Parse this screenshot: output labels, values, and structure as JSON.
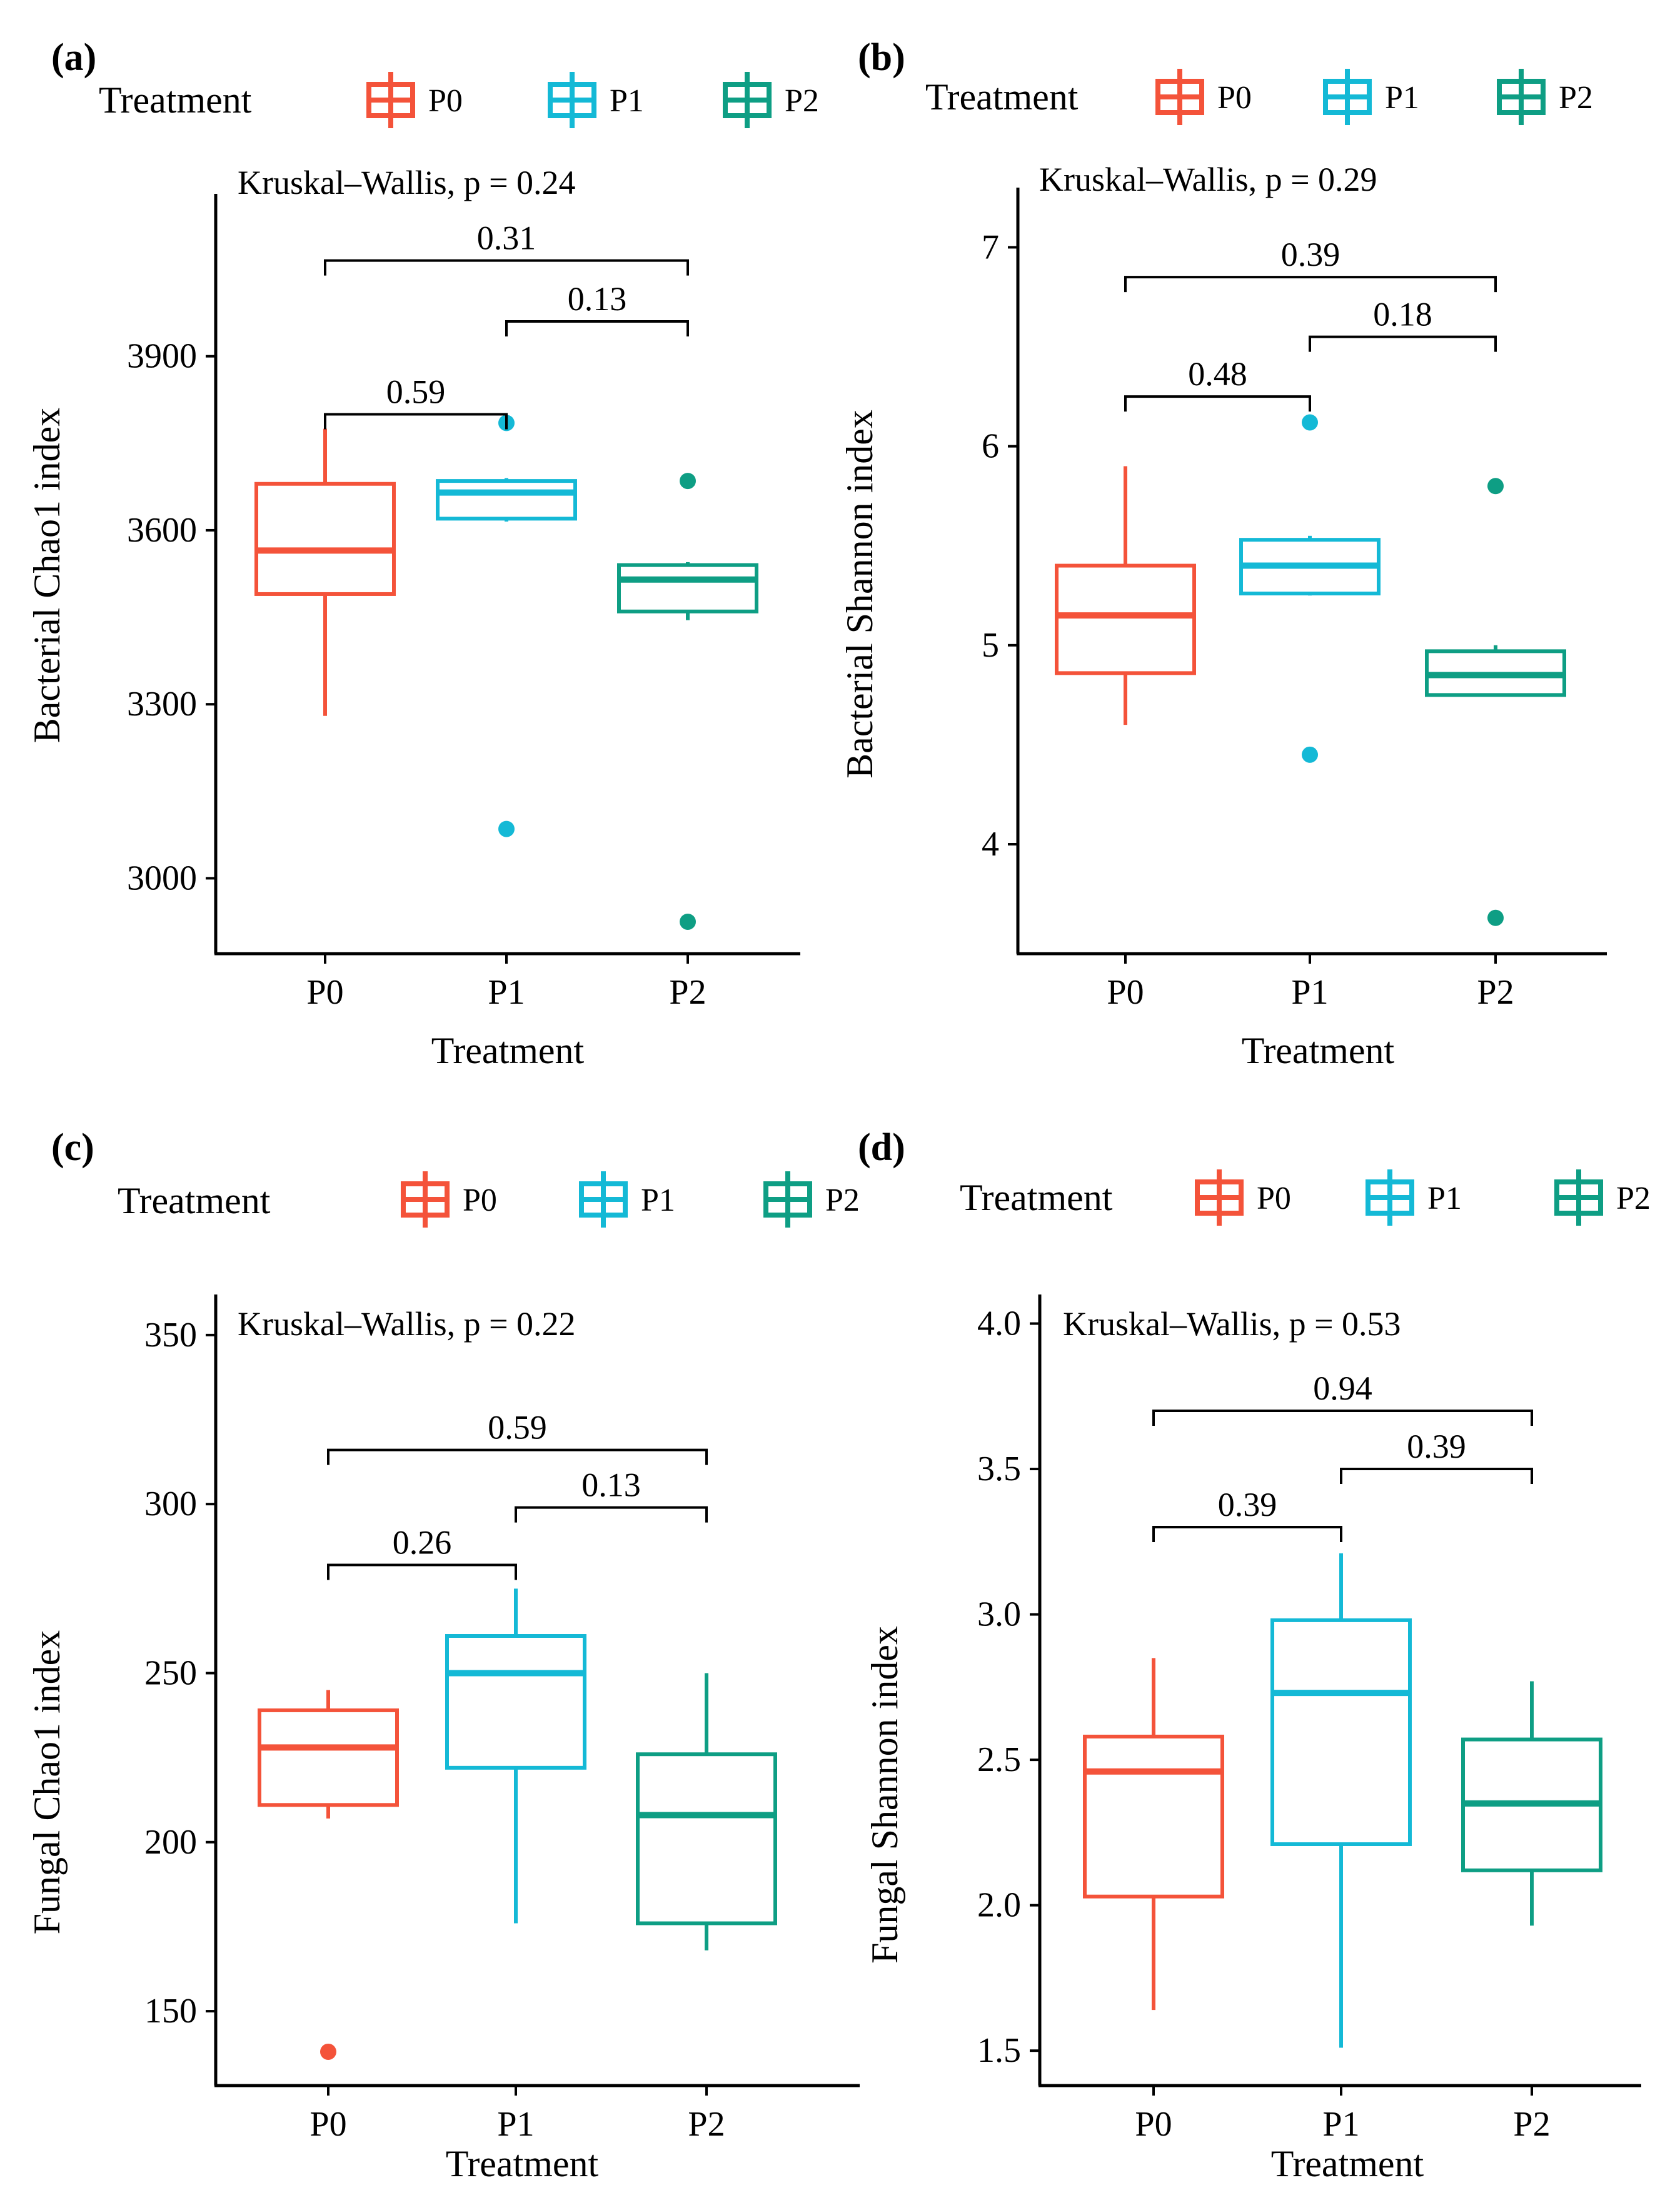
{
  "colors": {
    "P0": "#F4533A",
    "P1": "#14B9D6",
    "P2": "#0E9E84"
  },
  "chart_data": [
    {
      "type": "box",
      "panel": "(a)",
      "legend": {
        "title": "Treatment",
        "entries": [
          "P0",
          "P1",
          "P2"
        ]
      },
      "title": "Kruskal–Wallis, p = 0.24",
      "xlabel": "Treatment",
      "ylabel": "Bacterial Chao1 index",
      "categories": [
        "P0",
        "P1",
        "P2"
      ],
      "ylim": [
        2870,
        4180
      ],
      "yticks": [
        3000,
        3300,
        3600,
        3900
      ],
      "ytick_labels": [
        "3000",
        "3300",
        "3600",
        "3900"
      ],
      "boxes": [
        {
          "name": "P0",
          "min": 3280,
          "q1": 3490,
          "median": 3565,
          "q3": 3680,
          "max": 3775,
          "outliers": []
        },
        {
          "name": "P1",
          "min": 3615,
          "q1": 3620,
          "median": 3665,
          "q3": 3685,
          "max": 3690,
          "outliers": [
            3785,
            3085
          ]
        },
        {
          "name": "P2",
          "min": 3445,
          "q1": 3460,
          "median": 3515,
          "q3": 3540,
          "max": 3545,
          "outliers": [
            3685,
            2925
          ]
        }
      ],
      "comparisons": [
        {
          "from": "P0",
          "to": "P1",
          "label": "0.59",
          "y": 3800
        },
        {
          "from": "P1",
          "to": "P2",
          "label": "0.13",
          "y": 3960
        },
        {
          "from": "P0",
          "to": "P2",
          "label": "0.31",
          "y": 4065
        }
      ]
    },
    {
      "type": "box",
      "panel": "(b)",
      "legend": {
        "title": "Treatment",
        "entries": [
          "P0",
          "P1",
          "P2"
        ]
      },
      "title": "Kruskal–Wallis, p = 0.29",
      "xlabel": "Treatment",
      "ylabel": "Bacterial Shannon index",
      "categories": [
        "P0",
        "P1",
        "P2"
      ],
      "ylim": [
        3.45,
        7.3
      ],
      "yticks": [
        4,
        5,
        6,
        7
      ],
      "ytick_labels": [
        "4",
        "5",
        "6",
        "7"
      ],
      "boxes": [
        {
          "name": "P0",
          "min": 4.6,
          "q1": 4.86,
          "median": 5.15,
          "q3": 5.4,
          "max": 5.9,
          "outliers": []
        },
        {
          "name": "P1",
          "min": 5.25,
          "q1": 5.26,
          "median": 5.4,
          "q3": 5.53,
          "max": 5.55,
          "outliers": [
            6.12,
            4.45
          ]
        },
        {
          "name": "P2",
          "min": 4.75,
          "q1": 4.75,
          "median": 4.85,
          "q3": 4.97,
          "max": 5.0,
          "outliers": [
            5.8,
            3.63
          ]
        }
      ],
      "comparisons": [
        {
          "from": "P0",
          "to": "P1",
          "label": "0.48",
          "y": 6.25
        },
        {
          "from": "P1",
          "to": "P2",
          "label": "0.18",
          "y": 6.55
        },
        {
          "from": "P0",
          "to": "P2",
          "label": "0.39",
          "y": 6.85
        }
      ]
    },
    {
      "type": "box",
      "panel": "(c)",
      "legend": {
        "title": "Treatment",
        "entries": [
          "P0",
          "P1",
          "P2"
        ]
      },
      "title": "Kruskal–Wallis, p = 0.22",
      "xlabel": "Treatment",
      "ylabel": "Fungal Chao1 index",
      "categories": [
        "P0",
        "P1",
        "P2"
      ],
      "ylim": [
        128,
        362
      ],
      "yticks": [
        150,
        200,
        250,
        300,
        350
      ],
      "ytick_labels": [
        "150",
        "200",
        "250",
        "300",
        "350"
      ],
      "boxes": [
        {
          "name": "P0",
          "min": 207,
          "q1": 211,
          "median": 228,
          "q3": 239,
          "max": 245,
          "outliers": [
            138
          ]
        },
        {
          "name": "P1",
          "min": 176,
          "q1": 222,
          "median": 250,
          "q3": 261,
          "max": 275,
          "outliers": []
        },
        {
          "name": "P2",
          "min": 168,
          "q1": 176,
          "median": 208,
          "q3": 226,
          "max": 250,
          "outliers": []
        }
      ],
      "comparisons": [
        {
          "from": "P0",
          "to": "P1",
          "label": "0.26",
          "y": 282
        },
        {
          "from": "P1",
          "to": "P2",
          "label": "0.13",
          "y": 299
        },
        {
          "from": "P0",
          "to": "P2",
          "label": "0.59",
          "y": 316
        }
      ]
    },
    {
      "type": "box",
      "panel": "(d)",
      "legend": {
        "title": "Treatment",
        "entries": [
          "P0",
          "P1",
          "P2"
        ]
      },
      "title": "Kruskal–Wallis, p = 0.53",
      "xlabel": "Treatment",
      "ylabel": "Fungal Shannon index",
      "categories": [
        "P0",
        "P1",
        "P2"
      ],
      "ylim": [
        1.38,
        4.1
      ],
      "yticks": [
        1.5,
        2.0,
        2.5,
        3.0,
        3.5,
        4.0
      ],
      "ytick_labels": [
        "1.5",
        "2.0",
        "2.5",
        "3.0",
        "3.5",
        "4.0"
      ],
      "boxes": [
        {
          "name": "P0",
          "min": 1.64,
          "q1": 2.03,
          "median": 2.46,
          "q3": 2.58,
          "max": 2.85,
          "outliers": []
        },
        {
          "name": "P1",
          "min": 1.51,
          "q1": 2.21,
          "median": 2.73,
          "q3": 2.98,
          "max": 3.21,
          "outliers": []
        },
        {
          "name": "P2",
          "min": 1.93,
          "q1": 2.12,
          "median": 2.35,
          "q3": 2.57,
          "max": 2.77,
          "outliers": []
        }
      ],
      "comparisons": [
        {
          "from": "P0",
          "to": "P1",
          "label": "0.39",
          "y": 3.3
        },
        {
          "from": "P1",
          "to": "P2",
          "label": "0.39",
          "y": 3.5
        },
        {
          "from": "P0",
          "to": "P2",
          "label": "0.94",
          "y": 3.7
        }
      ]
    }
  ]
}
